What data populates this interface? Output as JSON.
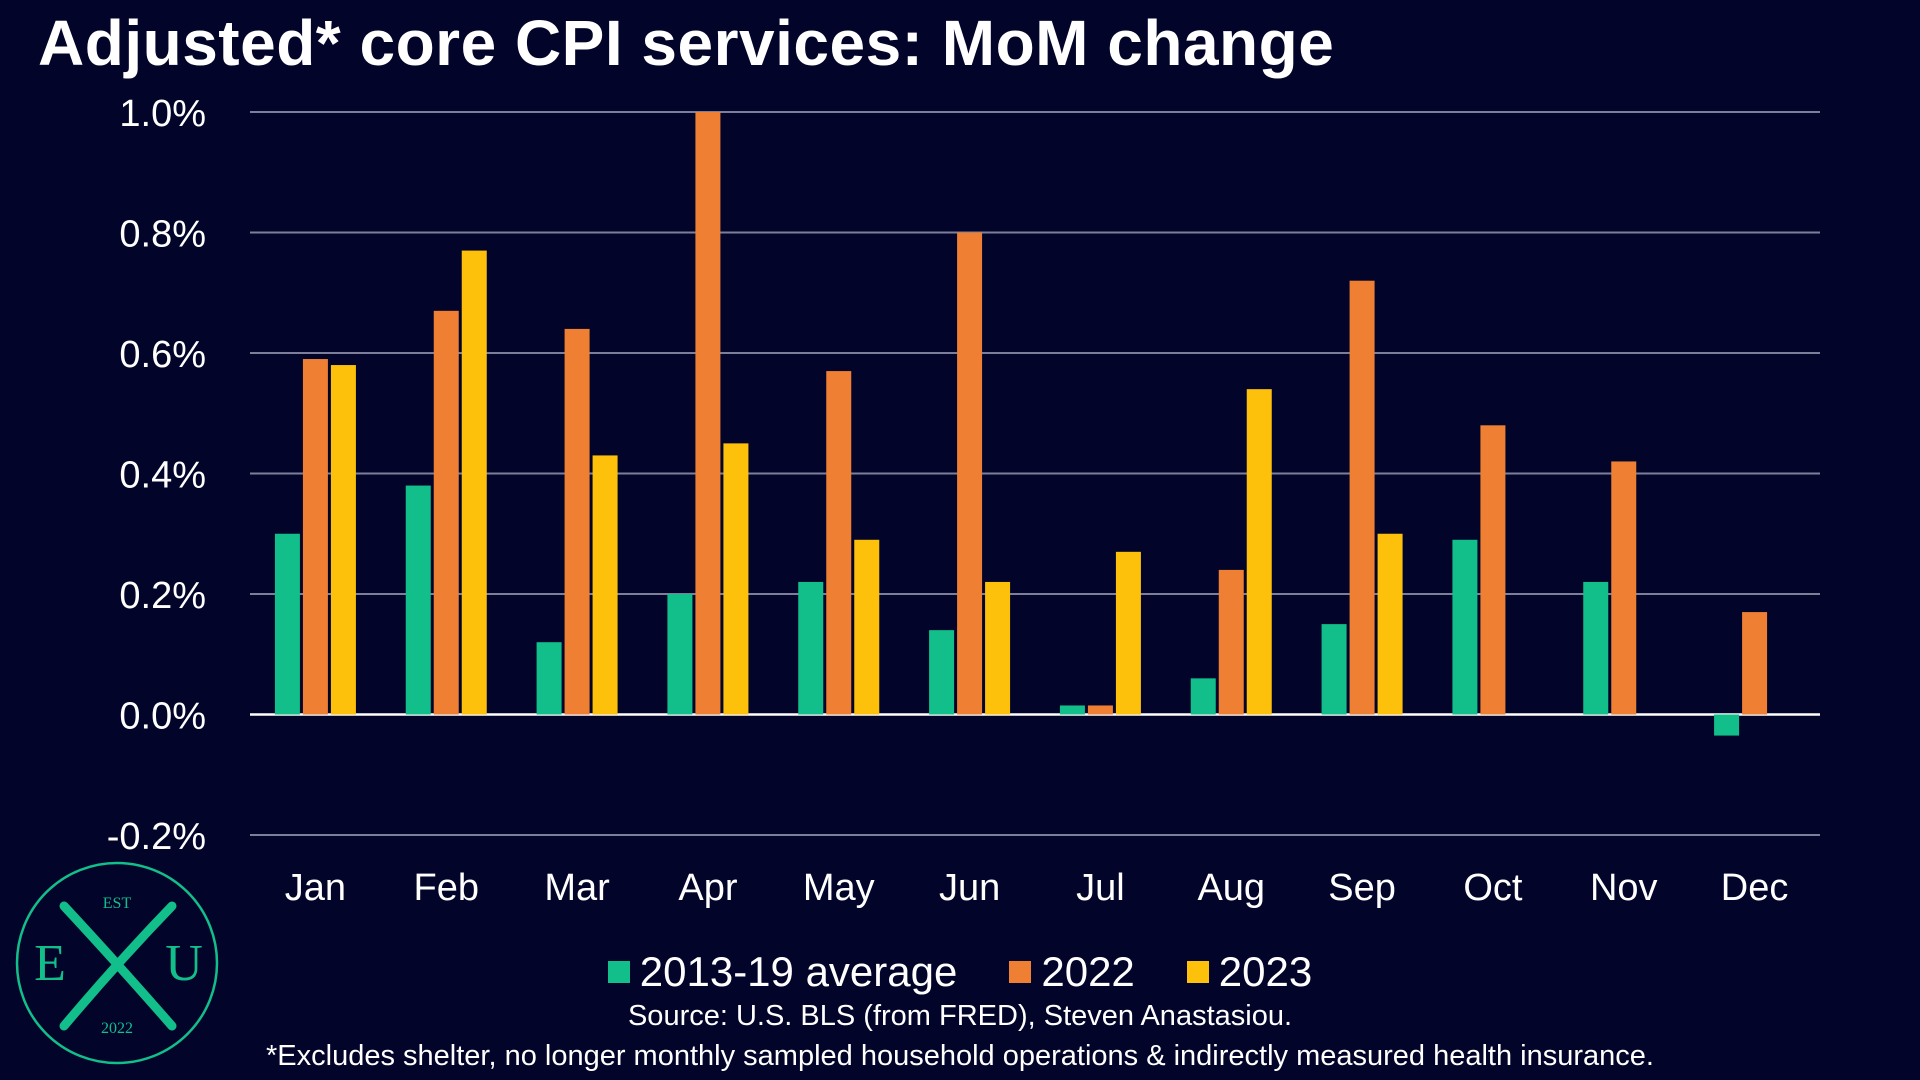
{
  "title": "Adjusted* core CPI services: MoM change",
  "legend": [
    {
      "label": "2013-19 average",
      "color": "#12bf8b"
    },
    {
      "label": "2022",
      "color": "#ee7f33"
    },
    {
      "label": "2023",
      "color": "#fdc10c"
    }
  ],
  "source": "Source: U.S. BLS (from FRED), Steven Anastasiou.",
  "footnote": "*Excludes shelter, no longer monthly sampled household operations & indirectly measured health insurance.",
  "logo": {
    "top": "EST",
    "left": "E",
    "right": "U",
    "bottom": "2022",
    "color": "#12bf8b"
  },
  "colors": {
    "grid": "#7d7f9a",
    "background": "#02042a"
  },
  "chart_data": {
    "type": "bar",
    "categories": [
      "Jan",
      "Feb",
      "Mar",
      "Apr",
      "May",
      "Jun",
      "Jul",
      "Aug",
      "Sep",
      "Oct",
      "Nov",
      "Dec"
    ],
    "series": [
      {
        "name": "2013-19 average",
        "color": "#12bf8b",
        "values": [
          0.3,
          0.38,
          0.12,
          0.2,
          0.22,
          0.14,
          0.015,
          0.06,
          0.15,
          0.29,
          0.22,
          -0.035
        ]
      },
      {
        "name": "2022",
        "color": "#ee7f33",
        "values": [
          0.59,
          0.67,
          0.64,
          1.0,
          0.57,
          0.8,
          0.015,
          0.24,
          0.72,
          0.48,
          0.42,
          0.17
        ]
      },
      {
        "name": "2023",
        "color": "#fdc10c",
        "values": [
          0.58,
          0.77,
          0.43,
          0.45,
          0.29,
          0.22,
          0.27,
          0.54,
          0.3,
          null,
          null,
          null
        ]
      }
    ],
    "yticks": [
      "1.0%",
      "0.8%",
      "0.6%",
      "0.4%",
      "0.2%",
      "0.0%",
      "-0.2%"
    ],
    "ytick_values": [
      1.0,
      0.8,
      0.6,
      0.4,
      0.2,
      0.0,
      -0.2
    ],
    "ylim": [
      -0.2,
      1.0
    ],
    "grid": true,
    "legend_position": "bottom"
  }
}
